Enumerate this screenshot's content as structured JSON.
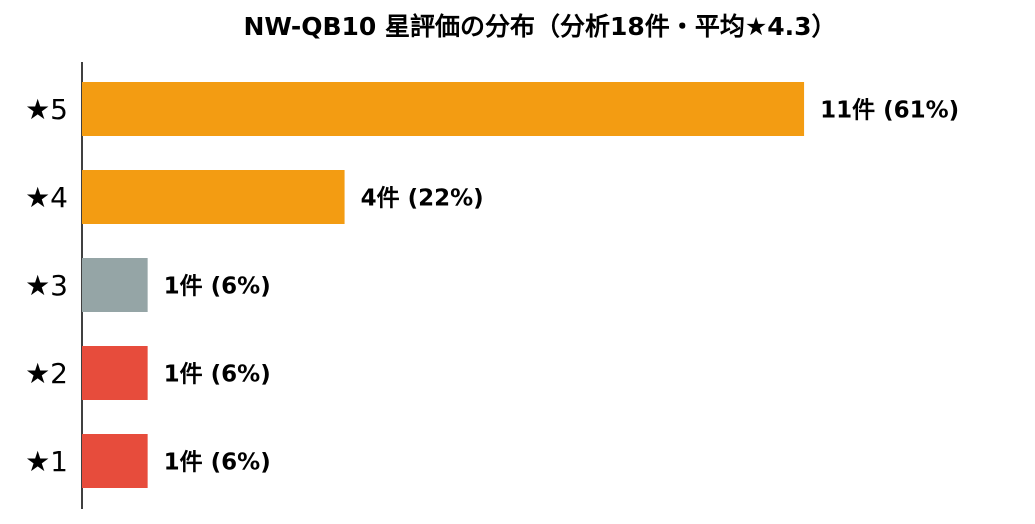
{
  "chart_data": {
    "type": "barh",
    "title": "NW-QB10 星評価の分布（分析18件・平均★4.3）",
    "categories": [
      "★5",
      "★4",
      "★3",
      "★2",
      "★1"
    ],
    "values": [
      11,
      4,
      1,
      1,
      1
    ],
    "value_labels": [
      "11件 (61%)",
      "4件 (22%)",
      "1件 (6%)",
      "1件 (6%)",
      "1件 (6%)"
    ],
    "colors": [
      "#f39c12",
      "#f39c12",
      "#95a5a6",
      "#e74c3c",
      "#e74c3c"
    ],
    "xlim": [
      0,
      14
    ]
  }
}
